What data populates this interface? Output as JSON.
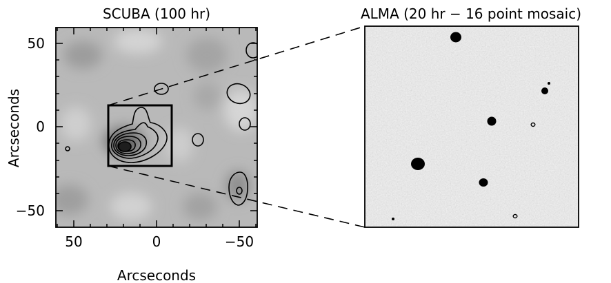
{
  "left_panel": {
    "title": "SCUBA (100 hr)",
    "x_axis_label": "Arcseconds",
    "y_axis_label": "Arcseconds",
    "x_ticks": [
      "50",
      "0",
      "−50"
    ],
    "y_ticks": [
      "50",
      "0",
      "−50"
    ]
  },
  "right_panel": {
    "title": "ALMA (20 hr − 16 point mosaic)"
  },
  "colors": {
    "background": "#ffffff",
    "ink": "#000000",
    "alma_noise": "#c9c9c9"
  }
}
